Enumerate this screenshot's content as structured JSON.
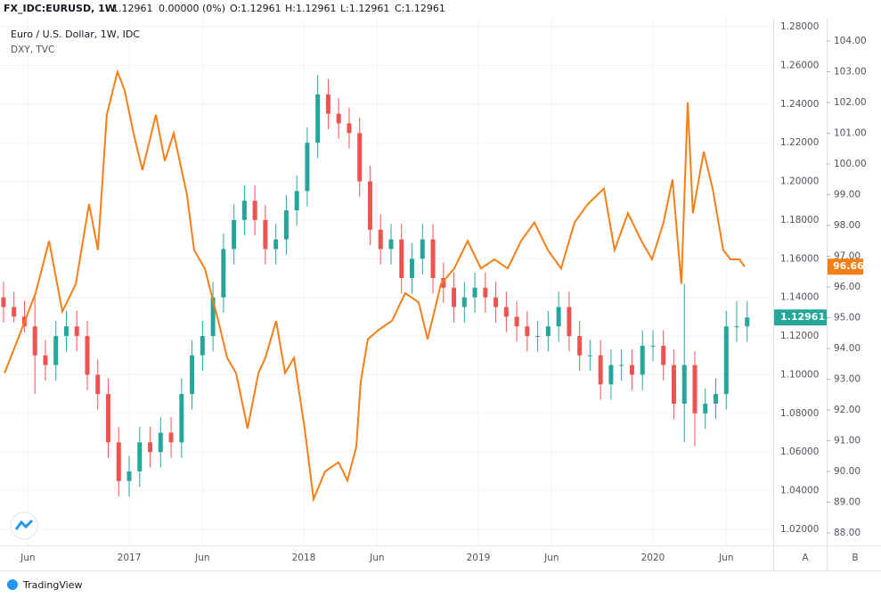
{
  "header": {
    "symbol": "FX_IDC:EURUSD, 1W",
    "last": "1.12961",
    "change": "0.00000 (0%)",
    "ohlc": [
      "O:1.12961",
      "H:1.12961",
      "L:1.12961",
      "C:1.12961"
    ]
  },
  "axis_buttons": [
    "A",
    "B"
  ],
  "footer": "TradingView",
  "chart_data": {
    "type": "candlestick",
    "title": "Euro / U.S. Dollar, 1W, IDC",
    "grid": true,
    "xlim": [
      2016.26,
      2020.689
    ],
    "xticks": [
      {
        "value": 2016.42,
        "label": "Jun"
      },
      {
        "value": 2017,
        "label": "2017"
      },
      {
        "value": 2017.42,
        "label": "Jun"
      },
      {
        "value": 2018,
        "label": "2018"
      },
      {
        "value": 2018.42,
        "label": "Jun"
      },
      {
        "value": 2019,
        "label": "2019"
      },
      {
        "value": 2019.42,
        "label": "Jun"
      },
      {
        "value": 2020,
        "label": "2020"
      },
      {
        "value": 2020.42,
        "label": "Jun"
      }
    ],
    "ylim": [
      1.0117,
      1.2846
    ],
    "yticks": [
      {
        "value": 1.02,
        "label": "1.02000"
      },
      {
        "value": 1.04,
        "label": "1.04000"
      },
      {
        "value": 1.06,
        "label": "1.06000"
      },
      {
        "value": 1.08,
        "label": "1.08000"
      },
      {
        "value": 1.1,
        "label": "1.10000"
      },
      {
        "value": 1.12,
        "label": "1.12000"
      },
      {
        "value": 1.14,
        "label": "1.14000"
      },
      {
        "value": 1.16,
        "label": "1.16000"
      },
      {
        "value": 1.18,
        "label": "1.18000"
      },
      {
        "value": 1.2,
        "label": "1.20000"
      },
      {
        "value": 1.22,
        "label": "1.22000"
      },
      {
        "value": 1.24,
        "label": "1.24000"
      },
      {
        "value": 1.26,
        "label": "1.26000"
      },
      {
        "value": 1.28,
        "label": "1.28000"
      }
    ],
    "y2lim": [
      87.594,
      104.754
    ],
    "y2ticks": [
      {
        "value": 88,
        "label": "88.00"
      },
      {
        "value": 89,
        "label": "89.00"
      },
      {
        "value": 90,
        "label": "90.00"
      },
      {
        "value": 91,
        "label": "91.00"
      },
      {
        "value": 92,
        "label": "92.00"
      },
      {
        "value": 93,
        "label": "93.00"
      },
      {
        "value": 94,
        "label": "94.00"
      },
      {
        "value": 95,
        "label": "95.00"
      },
      {
        "value": 96,
        "label": "96.00"
      },
      {
        "value": 97,
        "label": "97.00"
      },
      {
        "value": 98,
        "label": "98.00"
      },
      {
        "value": 99,
        "label": "99.00"
      },
      {
        "value": 100,
        "label": "100.00"
      },
      {
        "value": 101,
        "label": "101.00"
      },
      {
        "value": 102,
        "label": "102.00"
      },
      {
        "value": 103,
        "label": "103.00"
      },
      {
        "value": 104,
        "label": "104.00"
      }
    ],
    "series": [
      {
        "name": "Euro / U.S. Dollar, 1W, IDC",
        "type": "candlestick",
        "up_color": "#26a69a",
        "down_color": "#ef5350",
        "x": [
          2016.28,
          2016.34,
          2016.4,
          2016.46,
          2016.52,
          2016.58,
          2016.64,
          2016.7,
          2016.76,
          2016.82,
          2016.88,
          2016.94,
          2017.0,
          2017.06,
          2017.12,
          2017.18,
          2017.24,
          2017.3,
          2017.36,
          2017.42,
          2017.48,
          2017.54,
          2017.6,
          2017.66,
          2017.72,
          2017.78,
          2017.84,
          2017.9,
          2017.96,
          2018.02,
          2018.08,
          2018.14,
          2018.2,
          2018.26,
          2018.32,
          2018.38,
          2018.44,
          2018.5,
          2018.56,
          2018.62,
          2018.68,
          2018.74,
          2018.8,
          2018.86,
          2018.92,
          2018.98,
          2019.04,
          2019.1,
          2019.16,
          2019.22,
          2019.28,
          2019.34,
          2019.4,
          2019.46,
          2019.52,
          2019.58,
          2019.64,
          2019.7,
          2019.76,
          2019.82,
          2019.88,
          2019.94,
          2020.0,
          2020.06,
          2020.12,
          2020.18,
          2020.24,
          2020.3,
          2020.36,
          2020.42,
          2020.48,
          2020.54
        ],
        "open": [
          1.14,
          1.135,
          1.13,
          1.125,
          1.11,
          1.105,
          1.12,
          1.125,
          1.12,
          1.1,
          1.09,
          1.065,
          1.045,
          1.05,
          1.065,
          1.06,
          1.07,
          1.065,
          1.09,
          1.11,
          1.12,
          1.14,
          1.165,
          1.18,
          1.19,
          1.18,
          1.165,
          1.17,
          1.185,
          1.195,
          1.22,
          1.245,
          1.235,
          1.23,
          1.225,
          1.2,
          1.175,
          1.165,
          1.17,
          1.15,
          1.16,
          1.17,
          1.15,
          1.145,
          1.135,
          1.14,
          1.145,
          1.14,
          1.135,
          1.13,
          1.125,
          1.12,
          1.12,
          1.125,
          1.135,
          1.12,
          1.11,
          1.11,
          1.095,
          1.105,
          1.105,
          1.1,
          1.115,
          1.115,
          1.105,
          1.085,
          1.105,
          1.08,
          1.085,
          1.09,
          1.125,
          1.125
        ],
        "high": [
          1.148,
          1.143,
          1.138,
          1.142,
          1.118,
          1.128,
          1.133,
          1.133,
          1.128,
          1.108,
          1.098,
          1.073,
          1.058,
          1.073,
          1.073,
          1.078,
          1.078,
          1.098,
          1.118,
          1.128,
          1.148,
          1.173,
          1.188,
          1.198,
          1.198,
          1.188,
          1.178,
          1.193,
          1.203,
          1.228,
          1.255,
          1.253,
          1.243,
          1.238,
          1.233,
          1.208,
          1.183,
          1.178,
          1.178,
          1.168,
          1.178,
          1.178,
          1.158,
          1.153,
          1.148,
          1.153,
          1.153,
          1.148,
          1.143,
          1.138,
          1.133,
          1.128,
          1.133,
          1.143,
          1.143,
          1.128,
          1.118,
          1.118,
          1.113,
          1.113,
          1.113,
          1.123,
          1.123,
          1.123,
          1.113,
          1.147,
          1.112,
          1.093,
          1.098,
          1.133,
          1.138,
          1.138
        ],
        "low": [
          1.127,
          1.127,
          1.122,
          1.09,
          1.097,
          1.097,
          1.112,
          1.112,
          1.092,
          1.082,
          1.057,
          1.037,
          1.037,
          1.042,
          1.052,
          1.052,
          1.057,
          1.057,
          1.082,
          1.102,
          1.112,
          1.132,
          1.157,
          1.172,
          1.172,
          1.157,
          1.157,
          1.162,
          1.177,
          1.187,
          1.212,
          1.227,
          1.222,
          1.217,
          1.192,
          1.167,
          1.157,
          1.157,
          1.142,
          1.142,
          1.152,
          1.142,
          1.137,
          1.127,
          1.127,
          1.132,
          1.132,
          1.127,
          1.122,
          1.117,
          1.112,
          1.112,
          1.112,
          1.117,
          1.112,
          1.102,
          1.102,
          1.087,
          1.087,
          1.097,
          1.092,
          1.092,
          1.107,
          1.097,
          1.077,
          1.065,
          1.063,
          1.072,
          1.077,
          1.082,
          1.117,
          1.117
        ],
        "close": [
          1.135,
          1.13,
          1.125,
          1.11,
          1.105,
          1.12,
          1.125,
          1.12,
          1.1,
          1.09,
          1.065,
          1.045,
          1.05,
          1.065,
          1.06,
          1.07,
          1.065,
          1.09,
          1.11,
          1.12,
          1.14,
          1.165,
          1.18,
          1.19,
          1.18,
          1.165,
          1.17,
          1.185,
          1.195,
          1.22,
          1.245,
          1.235,
          1.23,
          1.225,
          1.2,
          1.175,
          1.165,
          1.17,
          1.15,
          1.16,
          1.17,
          1.15,
          1.145,
          1.135,
          1.14,
          1.145,
          1.14,
          1.135,
          1.13,
          1.125,
          1.12,
          1.12,
          1.125,
          1.135,
          1.12,
          1.11,
          1.11,
          1.095,
          1.105,
          1.105,
          1.1,
          1.115,
          1.115,
          1.105,
          1.085,
          1.105,
          1.08,
          1.085,
          1.09,
          1.125,
          1.125,
          1.12961
        ]
      },
      {
        "name": "DXY, TVC",
        "type": "line",
        "axis": "y2",
        "color": "#f57f17",
        "x": [
          2016.286,
          2016.362,
          2016.464,
          2016.541,
          2016.617,
          2016.694,
          2016.77,
          2016.821,
          2016.872,
          2016.933,
          2016.974,
          2017.025,
          2017.076,
          2017.153,
          2017.204,
          2017.255,
          2017.331,
          2017.372,
          2017.433,
          2017.51,
          2017.561,
          2017.612,
          2017.678,
          2017.74,
          2017.78,
          2017.842,
          2017.893,
          2017.944,
          2018.005,
          2018.056,
          2018.122,
          2018.199,
          2018.25,
          2018.301,
          2018.326,
          2018.367,
          2018.428,
          2018.505,
          2018.581,
          2018.658,
          2018.709,
          2018.786,
          2018.862,
          2018.939,
          2019.015,
          2019.092,
          2019.168,
          2019.245,
          2019.321,
          2019.398,
          2019.474,
          2019.551,
          2019.627,
          2019.719,
          2019.78,
          2019.857,
          2019.934,
          2019.995,
          2020.061,
          2020.112,
          2020.163,
          2020.199,
          2020.229,
          2020.291,
          2020.342,
          2020.403,
          2020.444,
          2020.495,
          2020.525
        ],
        "values": [
          93.2,
          94.3,
          95.8,
          97.5,
          95.2,
          96.1,
          98.7,
          97.2,
          101.6,
          103,
          102.4,
          101,
          99.8,
          101.6,
          100.1,
          101,
          99,
          97.2,
          96.6,
          94.9,
          93.7,
          93.2,
          91.4,
          93.2,
          93.7,
          94.9,
          93.2,
          93.7,
          91.4,
          89.1,
          90,
          90.3,
          89.7,
          90.8,
          92.9,
          94.3,
          94.6,
          94.9,
          95.8,
          95.5,
          94.3,
          96.1,
          96.6,
          97.5,
          96.6,
          96.9,
          96.6,
          97.5,
          98.1,
          97.2,
          96.6,
          98.1,
          98.7,
          99.2,
          97.2,
          98.4,
          97.5,
          96.9,
          98.1,
          99.5,
          96.1,
          102,
          98.4,
          100.4,
          99.2,
          97.2,
          96.9,
          96.9,
          96.66
        ]
      }
    ]
  }
}
